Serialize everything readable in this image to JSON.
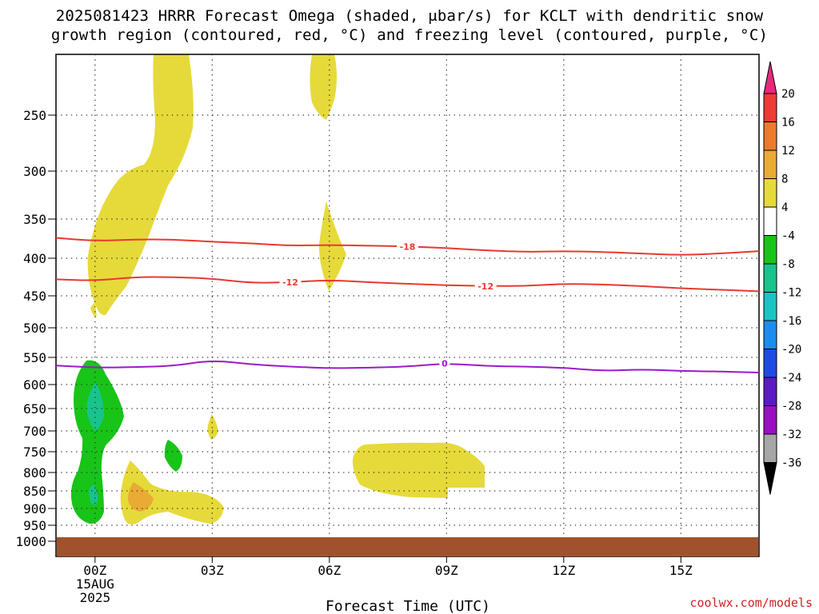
{
  "chart_data": {
    "type": "contour",
    "title_lines": [
      "2025081423 HRRR Forecast Omega (shaded, μbar/s) for KCLT with dendritic snow",
      "growth region (contoured, red, °C) and freezing level (contoured, purple, °C)"
    ],
    "xlabel": "Forecast Time (UTC)",
    "x_ticks": [
      {
        "hour": 0,
        "label": "00Z",
        "sub": [
          "15AUG",
          "2025"
        ]
      },
      {
        "hour": 3,
        "label": "03Z"
      },
      {
        "hour": 6,
        "label": "06Z"
      },
      {
        "hour": 9,
        "label": "09Z"
      },
      {
        "hour": 12,
        "label": "12Z"
      },
      {
        "hour": 15,
        "label": "15Z"
      }
    ],
    "xlim": [
      -1,
      17
    ],
    "y_ticks": [
      250,
      300,
      350,
      400,
      450,
      500,
      550,
      600,
      650,
      700,
      750,
      800,
      850,
      900,
      950,
      1000
    ],
    "ylim_hpa": [
      1020,
      200
    ],
    "grid": true,
    "ground_color": "#a0522d",
    "contours": [
      {
        "label": "-18",
        "color": "#e8392f",
        "label_hour": 8.0,
        "points": [
          [
            -1,
            374
          ],
          [
            0,
            378
          ],
          [
            1,
            376
          ],
          [
            2,
            376
          ],
          [
            3,
            379
          ],
          [
            4,
            381
          ],
          [
            5,
            384
          ],
          [
            6,
            383
          ],
          [
            7,
            384
          ],
          [
            8,
            385
          ],
          [
            9,
            387
          ],
          [
            10,
            390
          ],
          [
            11,
            392
          ],
          [
            12,
            391
          ],
          [
            13,
            392
          ],
          [
            14,
            394
          ],
          [
            15,
            396
          ],
          [
            16,
            394
          ],
          [
            17,
            391
          ]
        ]
      },
      {
        "label": "-12",
        "color": "#e8392f",
        "label_hour": 5.0,
        "label_hour2": 10.0,
        "points": [
          [
            -1,
            428
          ],
          [
            0,
            430
          ],
          [
            1,
            425
          ],
          [
            2,
            425
          ],
          [
            3,
            427
          ],
          [
            4,
            433
          ],
          [
            5,
            432
          ],
          [
            6,
            429
          ],
          [
            7,
            432
          ],
          [
            8,
            434
          ],
          [
            9,
            436
          ],
          [
            10,
            437
          ],
          [
            11,
            437
          ],
          [
            12,
            434
          ],
          [
            13,
            435
          ],
          [
            14,
            437
          ],
          [
            15,
            440
          ],
          [
            16,
            442
          ],
          [
            17,
            444
          ]
        ]
      },
      {
        "label": "0",
        "color": "#9b1ac8",
        "label_hour": 8.95,
        "points": [
          [
            -1,
            565
          ],
          [
            0,
            569
          ],
          [
            1,
            568
          ],
          [
            2,
            566
          ],
          [
            3,
            555
          ],
          [
            4,
            563
          ],
          [
            5,
            567
          ],
          [
            6,
            570
          ],
          [
            7,
            569
          ],
          [
            8,
            567
          ],
          [
            9,
            561
          ],
          [
            10,
            566
          ],
          [
            11,
            567
          ],
          [
            12,
            569
          ],
          [
            13,
            575
          ],
          [
            14,
            572
          ],
          [
            15,
            575
          ],
          [
            16,
            576
          ],
          [
            17,
            578
          ]
        ]
      }
    ],
    "colorbar": {
      "labels": [
        "20",
        "16",
        "12",
        "8",
        "4",
        "-4",
        "-8",
        "-12",
        "-16",
        "-20",
        "-24",
        "-28",
        "-32",
        "-36"
      ],
      "colors": [
        "#e8287d",
        "#ee3b36",
        "#ef7a2c",
        "#eaab34",
        "#e6da3a",
        "#ffffff",
        "#18c418",
        "#17c48c",
        "#1ac4c4",
        "#1a8ef0",
        "#1f4ae6",
        "#5a1ac4",
        "#9b0fc4",
        "#a6a6a6",
        "#000000"
      ]
    }
  },
  "credit": "coolwx.com/models"
}
